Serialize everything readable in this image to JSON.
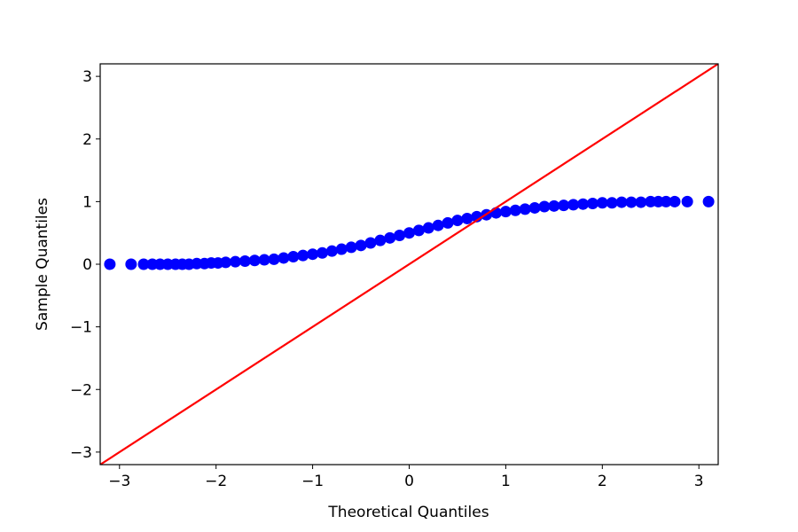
{
  "chart_data": {
    "type": "scatter",
    "title": "",
    "xlabel": "Theoretical Quantiles",
    "ylabel": "Sample Quantiles",
    "xlim": [
      -3.2,
      3.2
    ],
    "ylim": [
      -3.2,
      3.2
    ],
    "xticks": [
      "−3",
      "−2",
      "−1",
      "0",
      "1",
      "2",
      "3"
    ],
    "yticks": [
      "−3",
      "−2",
      "−1",
      "0",
      "1",
      "2",
      "3"
    ],
    "grid": false,
    "legend": "none",
    "series": [
      {
        "marker_color": "#0000ff",
        "x": [
          -3.1,
          -2.88,
          -2.75,
          -2.66,
          -2.58,
          -2.5,
          -2.42,
          -2.35,
          -2.28,
          -2.2,
          -2.12,
          -2.05,
          -1.98,
          -1.9,
          -1.8,
          -1.7,
          -1.6,
          -1.5,
          -1.4,
          -1.3,
          -1.2,
          -1.1,
          -1.0,
          -0.9,
          -0.8,
          -0.7,
          -0.6,
          -0.5,
          -0.4,
          -0.3,
          -0.2,
          -0.1,
          0.0,
          0.1,
          0.2,
          0.3,
          0.4,
          0.5,
          0.6,
          0.7,
          0.8,
          0.9,
          1.0,
          1.1,
          1.2,
          1.3,
          1.4,
          1.5,
          1.6,
          1.7,
          1.8,
          1.9,
          2.0,
          2.1,
          2.2,
          2.3,
          2.4,
          2.5,
          2.58,
          2.66,
          2.75,
          2.88,
          3.1
        ],
        "y": [
          0.0,
          0.0,
          0.0,
          0.0,
          0.0,
          0.0,
          0.0,
          0.0,
          0.0,
          0.01,
          0.01,
          0.02,
          0.02,
          0.03,
          0.04,
          0.05,
          0.06,
          0.07,
          0.08,
          0.1,
          0.12,
          0.14,
          0.16,
          0.18,
          0.21,
          0.24,
          0.27,
          0.3,
          0.34,
          0.38,
          0.42,
          0.46,
          0.5,
          0.54,
          0.58,
          0.62,
          0.66,
          0.7,
          0.73,
          0.76,
          0.79,
          0.82,
          0.84,
          0.86,
          0.88,
          0.9,
          0.92,
          0.93,
          0.94,
          0.95,
          0.96,
          0.97,
          0.98,
          0.98,
          0.99,
          0.99,
          0.99,
          1.0,
          1.0,
          1.0,
          1.0,
          1.0,
          1.0
        ]
      }
    ],
    "reference_line": {
      "x": [
        -3.2,
        3.2
      ],
      "y": [
        -3.2,
        3.2
      ],
      "color": "#ff0000"
    }
  }
}
